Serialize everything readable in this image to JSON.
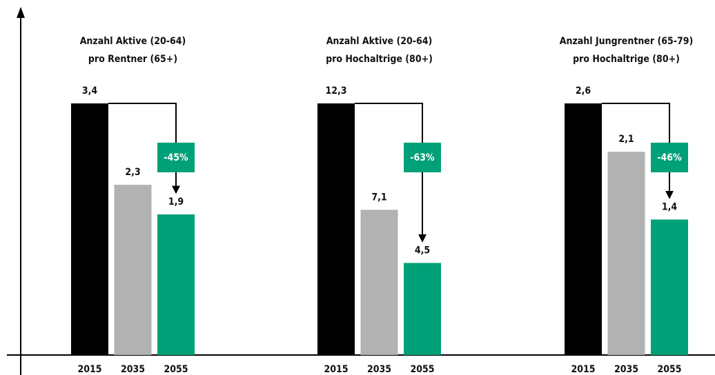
{
  "chart_data": [
    {
      "type": "bar",
      "title": [
        "Anzahl Aktive (20-64)",
        "pro Rentner (65+)"
      ],
      "categories": [
        "2015",
        "2035",
        "2055"
      ],
      "values": [
        3.4,
        2.3,
        1.9
      ],
      "value_labels": [
        "3,4",
        "2,3",
        "1,9"
      ],
      "colors": [
        "#000000",
        "#b2b2b2",
        "#00a078"
      ],
      "ylim": [
        0,
        3.4
      ],
      "change": {
        "value": -45,
        "label": "-45%"
      }
    },
    {
      "type": "bar",
      "title": [
        "Anzahl Aktive (20-64)",
        "pro Hochaltrige (80+)"
      ],
      "categories": [
        "2015",
        "2035",
        "2055"
      ],
      "values": [
        12.3,
        7.1,
        4.5
      ],
      "value_labels": [
        "12,3",
        "7,1",
        "4,5"
      ],
      "colors": [
        "#000000",
        "#b2b2b2",
        "#00a078"
      ],
      "ylim": [
        0,
        12.3
      ],
      "change": {
        "value": -63,
        "label": "-63%"
      }
    },
    {
      "type": "bar",
      "title": [
        "Anzahl Jungrentner (65-79)",
        "pro Hochaltrige (80+)"
      ],
      "categories": [
        "2015",
        "2035",
        "2055"
      ],
      "values": [
        2.6,
        2.1,
        1.4
      ],
      "value_labels": [
        "2,6",
        "2,1",
        "1,4"
      ],
      "colors": [
        "#000000",
        "#b2b2b2",
        "#00a078"
      ],
      "ylim": [
        0,
        2.6
      ],
      "change": {
        "value": -46,
        "label": "-46%"
      }
    }
  ]
}
